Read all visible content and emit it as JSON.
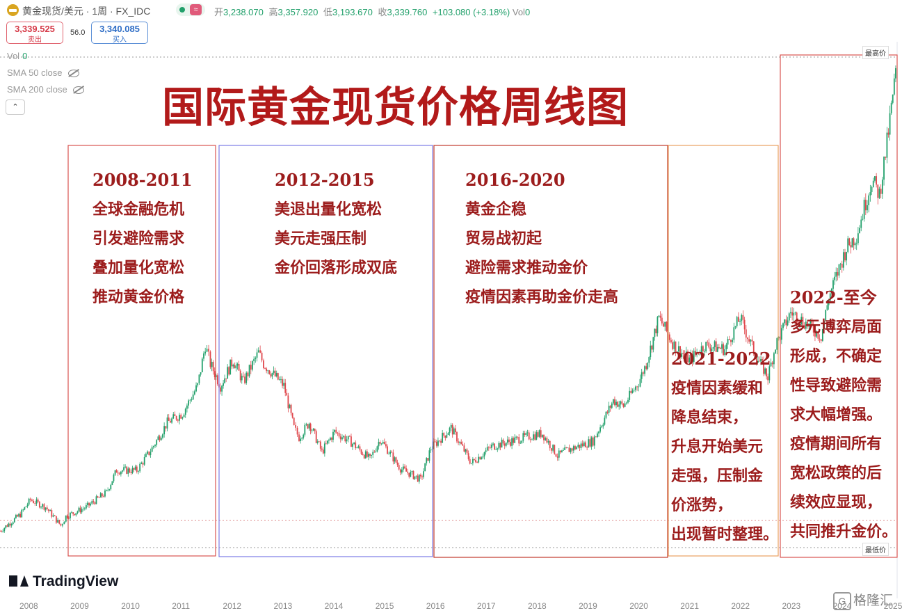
{
  "header": {
    "symbol": "黄金现货/美元 · 1周 · FX_IDC",
    "toggle_glyph": "≈",
    "ohlc": [
      {
        "label": "开",
        "value": "3,238.070"
      },
      {
        "label": "高",
        "value": "3,357.920"
      },
      {
        "label": "低",
        "value": "3,193.670"
      },
      {
        "label": "收",
        "value": "3,339.760"
      }
    ],
    "change": "+103.080 (+3.18%)",
    "vol_label": "Vol",
    "vol_value": "0"
  },
  "prices": {
    "sell_price": "3,339.525",
    "sell_label": "卖出",
    "spread": "56.0",
    "buy_price": "3,340.085",
    "buy_label": "买入"
  },
  "indicators": {
    "vol": "Vol",
    "vol_value": "0",
    "sma50": "SMA 50 close",
    "sma200": "SMA 200 close",
    "collapse_glyph": "⌃"
  },
  "title": "国际黄金现货价格周线图",
  "annotations": [
    {
      "year": "2008-2011",
      "lines": [
        "全球金融危机",
        "引发避险需求",
        "叠加量化宽松",
        "推动黄金价格"
      ],
      "box_color": "#d9534f"
    },
    {
      "year": "2012-2015",
      "lines": [
        "美退出量化宽松",
        "美元走强压制",
        "金价回落形成双底"
      ],
      "box_color": "#7b7be6"
    },
    {
      "year": "2016-2020",
      "lines": [
        "黄金企稳",
        "贸易战初起",
        "避险需求推动金价",
        "疫情因素再助金价走高"
      ],
      "box_color": "#c0392b"
    },
    {
      "year": "2021-2022",
      "lines": [
        "疫情因素缓和",
        "降息结束，",
        "升息开始美元",
        "走强，压制金",
        "价涨势，",
        "出现暂时整理。"
      ],
      "box_color": "#e8a060"
    },
    {
      "year": "2022-至今",
      "lines": [
        "多元博弈局面",
        "形成，不确定",
        "性导致避险需",
        "求大幅增强。",
        "疫情期间所有",
        "宽松政策的后",
        "续效应显现，",
        "共同推升金价。"
      ],
      "box_color": "#d9534f"
    }
  ],
  "axis": {
    "years": [
      "2008",
      "2009",
      "2010",
      "2011",
      "2012",
      "2013",
      "2014",
      "2015",
      "2016",
      "2017",
      "2018",
      "2019",
      "2020",
      "2021",
      "2022",
      "2023",
      "2024",
      "2025"
    ],
    "high_label": "最高价",
    "low_label": "最低价"
  },
  "branding": {
    "tradingview": "TradingView",
    "gelonghui": "格隆汇",
    "gelonghui_mark": "G"
  },
  "colors": {
    "up": "#22a06b",
    "down": "#e0474c",
    "title": "#b21a1a",
    "annotation": "#9c1c1c"
  },
  "chart_data": {
    "type": "candlestick",
    "x_unit": "year (weekly candles)",
    "y_unit": "USD per ounce",
    "title": "",
    "xlabel": "",
    "ylabel": "",
    "xlim": [
      2007.6,
      2025.3
    ],
    "ylim": [
      700,
      3360
    ],
    "x": [
      2007.6,
      2008.0,
      2008.2,
      2008.5,
      2008.8,
      2008.9,
      2009.3,
      2009.7,
      2009.9,
      2010.3,
      2010.6,
      2010.9,
      2011.2,
      2011.5,
      2011.65,
      2011.75,
      2011.95,
      2012.2,
      2012.4,
      2012.7,
      2012.8,
      2013.2,
      2013.4,
      2013.5,
      2013.7,
      2013.95,
      2014.2,
      2014.5,
      2014.9,
      2015.1,
      2015.5,
      2015.9,
      2016.1,
      2016.5,
      2016.9,
      2017.3,
      2017.7,
      2017.95,
      2018.3,
      2018.6,
      2018.8,
      2019.3,
      2019.7,
      2019.9,
      2020.2,
      2020.35,
      2020.6,
      2020.9,
      2021.2,
      2021.5,
      2021.9,
      2022.2,
      2022.5,
      2022.75,
      2022.9,
      2023.2,
      2023.5,
      2023.8,
      2023.95,
      2024.3,
      2024.5,
      2024.8,
      2024.95,
      2025.1,
      2025.3
    ],
    "close": [
      790,
      880,
      960,
      920,
      820,
      870,
      920,
      1000,
      1120,
      1120,
      1240,
      1380,
      1430,
      1580,
      1800,
      1700,
      1580,
      1720,
      1600,
      1760,
      1700,
      1580,
      1350,
      1300,
      1380,
      1220,
      1330,
      1280,
      1180,
      1290,
      1130,
      1070,
      1240,
      1350,
      1160,
      1250,
      1280,
      1300,
      1320,
      1200,
      1230,
      1280,
      1500,
      1470,
      1600,
      1700,
      1950,
      1800,
      1720,
      1800,
      1780,
      1950,
      1750,
      1630,
      1800,
      1980,
      1920,
      1850,
      2060,
      2330,
      2400,
      2700,
      2620,
      2900,
      3340
    ]
  }
}
